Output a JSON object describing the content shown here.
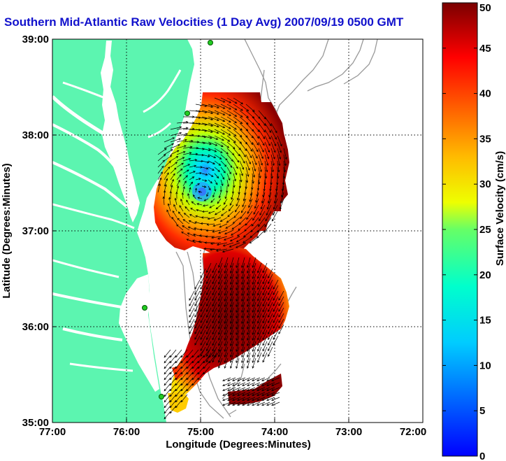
{
  "title": "Southern Mid-Atlantic Raw Velocities (1 Day Avg) 2007/09/19 0500 GMT",
  "map": {
    "xlabel": "Longitude (Degrees:Minutes)",
    "ylabel": "Latitude (Degrees:Minutes)",
    "x_ticks": [
      "77:00",
      "76:00",
      "75:00",
      "74:00",
      "73:00",
      "72:00"
    ],
    "y_ticks": [
      "39:00",
      "38:00",
      "37:00",
      "36:00",
      "35:00"
    ],
    "land_color": "#5cf5b0",
    "grid": "dotted"
  },
  "colorbar": {
    "label": "Surface Velocity (cm/s)",
    "ticks": [
      "50",
      "45",
      "40",
      "35",
      "30",
      "25",
      "20",
      "15",
      "10",
      "5",
      "0"
    ],
    "range": [
      0,
      50
    ],
    "colormap": "jet"
  }
}
